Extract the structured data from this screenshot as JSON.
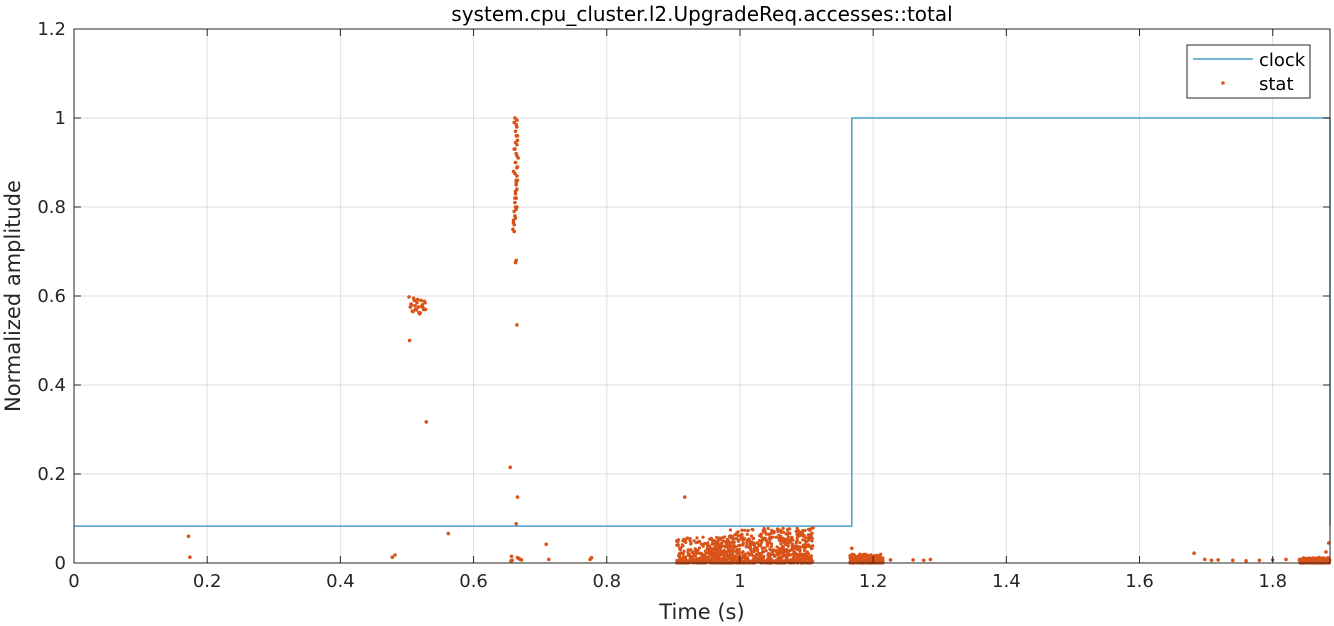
{
  "chart_data": {
    "type": "line+scatter",
    "title": "system.cpu_cluster.l2.UpgradeReq.accesses::total",
    "xlabel": "Time (s)",
    "ylabel": "Normalized amplitude",
    "xlim": [
      0,
      1.886
    ],
    "ylim": [
      0,
      1.2
    ],
    "xticks": [
      0,
      0.2,
      0.4,
      0.6,
      0.8,
      1,
      1.2,
      1.4,
      1.6,
      1.8
    ],
    "xtick_labels": [
      "0",
      "0.2",
      "0.4",
      "0.6",
      "0.8",
      "1",
      "1.2",
      "1.4",
      "1.6",
      "1.8"
    ],
    "yticks": [
      0,
      0.2,
      0.4,
      0.6,
      0.8,
      1,
      1.2
    ],
    "ytick_labels": [
      "0",
      "0.2",
      "0.4",
      "0.6",
      "0.8",
      "1",
      "1.2"
    ],
    "grid": true,
    "legend_position": "top-right",
    "series": [
      {
        "name": "clock",
        "kind": "step-line",
        "color": "#4a9fc9",
        "x": [
          0,
          1.168,
          1.168,
          1.886,
          1.886
        ],
        "y": [
          0.083,
          0.083,
          1,
          1,
          0.083
        ]
      },
      {
        "name": "stat",
        "kind": "scatter",
        "color": "#d95319",
        "x": [
          0.172,
          0.174,
          0.478,
          0.482,
          0.503,
          0.505,
          0.507,
          0.509,
          0.511,
          0.513,
          0.515,
          0.517,
          0.519,
          0.521,
          0.523,
          0.525,
          0.527,
          0.504,
          0.508,
          0.512,
          0.516,
          0.52,
          0.524,
          0.526,
          0.506,
          0.514,
          0.522,
          0.51,
          0.518,
          0.528,
          0.529,
          0.562,
          0.655,
          0.657,
          0.659,
          0.66,
          0.661,
          0.662,
          0.663,
          0.664,
          0.665,
          0.666,
          0.667,
          0.661,
          0.662,
          0.663,
          0.664,
          0.665,
          0.666,
          0.66,
          0.663,
          0.664,
          0.665,
          0.662,
          0.666,
          0.664,
          0.663,
          0.665,
          0.661,
          0.662,
          0.663,
          0.664,
          0.665,
          0.666,
          0.664,
          0.665,
          0.663,
          0.662,
          0.664,
          0.663,
          0.661,
          0.666,
          0.664,
          0.665,
          0.663,
          0.665,
          0.662,
          0.663,
          0.664,
          0.66,
          0.661,
          0.664,
          0.665,
          0.666,
          0.668,
          0.67,
          0.672,
          0.658,
          0.656,
          0.709,
          0.713,
          0.775,
          0.777,
          0.917,
          1.168,
          1.186,
          1.206,
          1.226,
          1.26,
          1.276,
          1.286,
          1.682,
          1.698,
          1.708,
          1.718,
          1.74,
          1.76,
          1.78,
          1.8,
          1.82,
          1.84,
          1.86,
          1.87,
          1.88,
          1.884
        ],
        "y": [
          0.06,
          0.013,
          0.013,
          0.018,
          0.598,
          0.575,
          0.58,
          0.565,
          0.59,
          0.57,
          0.585,
          0.575,
          0.56,
          0.59,
          0.58,
          0.57,
          0.585,
          0.5,
          0.566,
          0.578,
          0.592,
          0.562,
          0.574,
          0.588,
          0.582,
          0.569,
          0.577,
          0.595,
          0.563,
          0.57,
          0.317,
          0.066,
          0.215,
          0.015,
          0.75,
          0.77,
          0.79,
          0.81,
          0.83,
          0.85,
          0.87,
          0.89,
          0.91,
          0.76,
          0.78,
          0.8,
          0.82,
          0.84,
          0.86,
          0.88,
          0.9,
          0.92,
          0.94,
          0.93,
          0.95,
          0.96,
          0.97,
          0.98,
          0.99,
          1.0,
          0.675,
          0.68,
          0.535,
          0.148,
          0.088,
          0.8,
          0.775,
          0.82,
          0.86,
          0.9,
          0.93,
          0.96,
          0.985,
          0.995,
          0.945,
          0.915,
          0.875,
          0.835,
          0.795,
          0.765,
          0.745,
          0.855,
          0.888,
          0.012,
          0.01,
          0.008,
          0.007,
          0.006,
          0.005,
          0.042,
          0.008,
          0.008,
          0.012,
          0.148,
          0.033,
          0.01,
          0.008,
          0.007,
          0.007,
          0.006,
          0.008,
          0.022,
          0.008,
          0.006,
          0.007,
          0.006,
          0.005,
          0.006,
          0.007,
          0.008,
          0.006,
          0.007,
          0.012,
          0.025,
          0.045
        ],
        "clusters": [
          {
            "x_range": [
              0.905,
              0.99
            ],
            "y_range": [
              0,
              0.06
            ]
          },
          {
            "x_range": [
              0.985,
              1.11
            ],
            "y_range": [
              0,
              0.08
            ]
          },
          {
            "x_range": [
              1.165,
              1.215
            ],
            "y_range": [
              0,
              0.02
            ]
          },
          {
            "x_range": [
              1.84,
              1.886
            ],
            "y_range": [
              0,
              0.012
            ]
          }
        ]
      }
    ]
  }
}
